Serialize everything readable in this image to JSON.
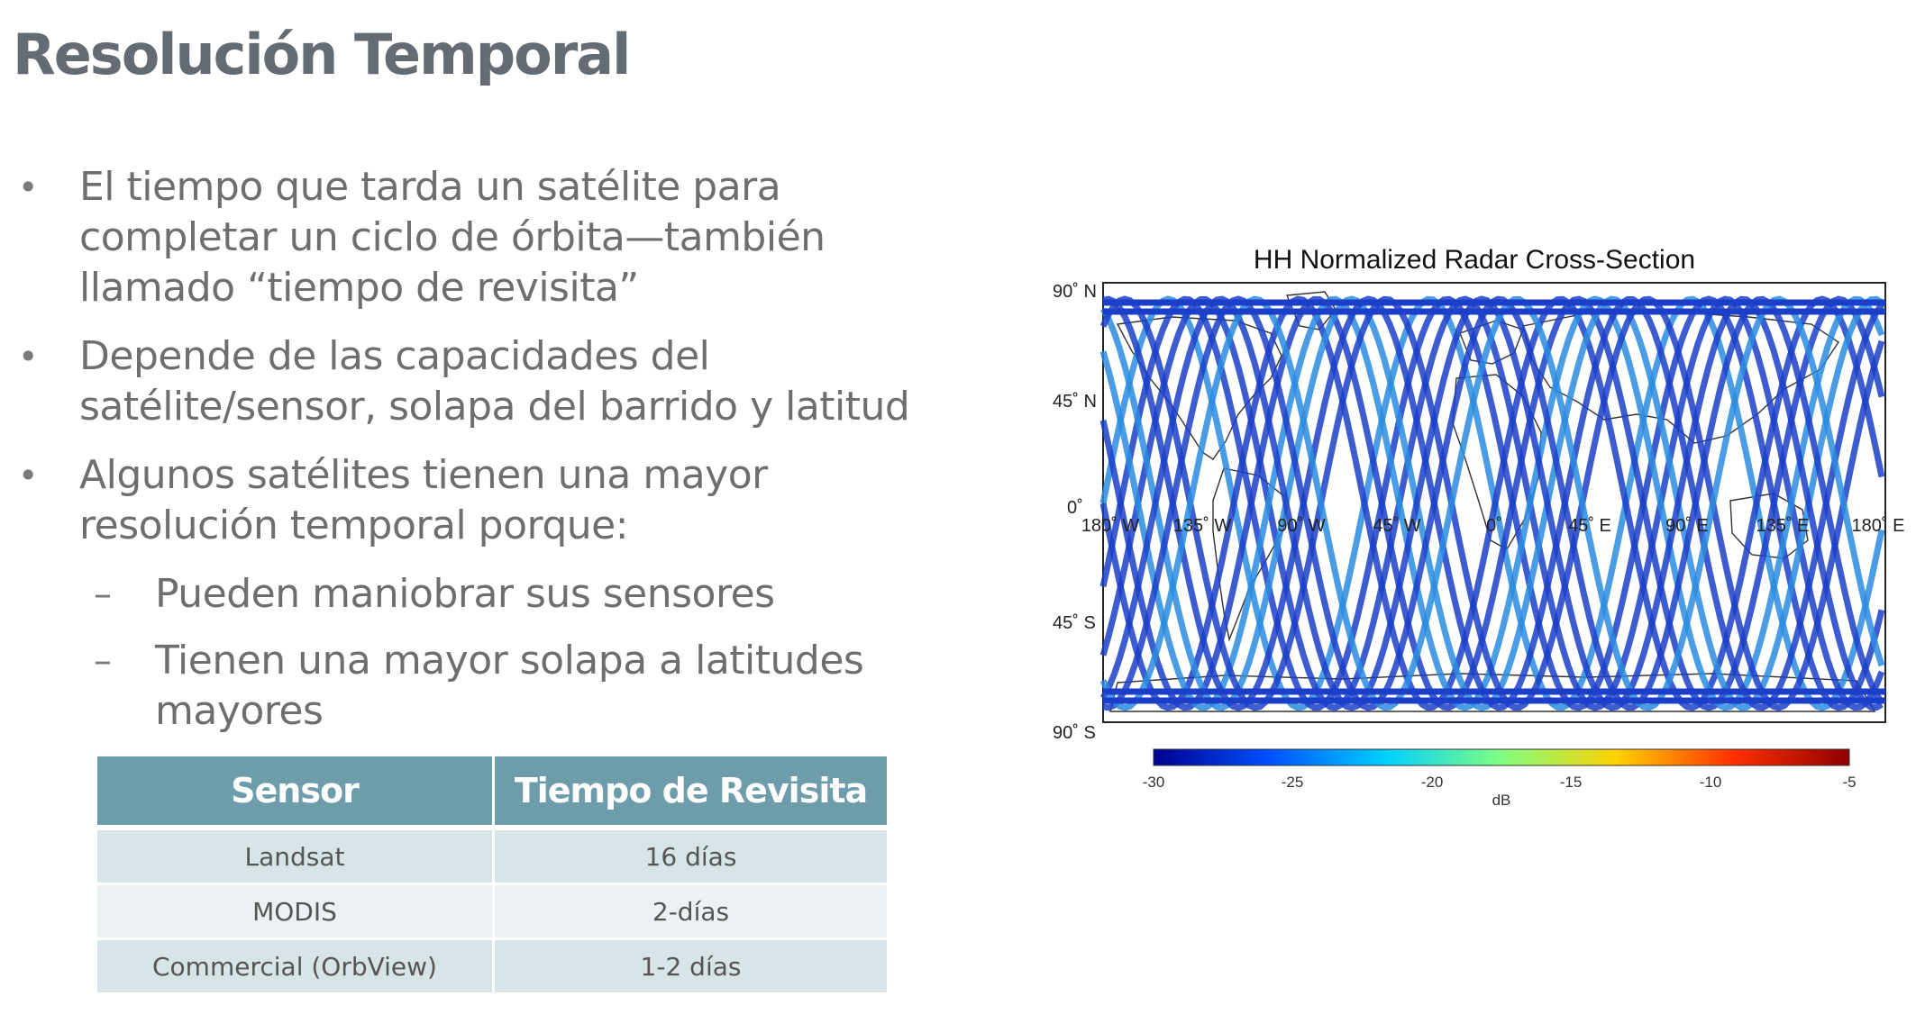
{
  "title": "Resolución Temporal",
  "bullets": [
    {
      "level": 1,
      "marker": "•",
      "text": "El tiempo que tarda un satélite para completar un ciclo de órbita—también llamado “tiempo de revisita”"
    },
    {
      "level": 1,
      "marker": "•",
      "text": "Depende de las capacidades del satélite/sensor, solapa del barrido y latitud"
    },
    {
      "level": 1,
      "marker": "•",
      "text": "Algunos satélites tienen una mayor resolución temporal porque:"
    },
    {
      "level": 2,
      "marker": "–",
      "text": "Pueden maniobrar sus sensores"
    },
    {
      "level": 2,
      "marker": "–",
      "text": "Tienen una mayor solapa a latitudes mayores"
    }
  ],
  "table": {
    "headers": [
      "Sensor",
      "Tiempo de Revisita"
    ],
    "rows": [
      [
        "Landsat",
        "16 días"
      ],
      [
        "MODIS",
        "2-días"
      ],
      [
        "Commercial (OrbView)",
        "1-2 días"
      ]
    ]
  },
  "figure": {
    "title": "HH Normalized Radar Cross-Section",
    "lat_labels": [
      "90˚ N",
      "45˚ N",
      "0˚",
      "45˚ S",
      "90˚ S"
    ],
    "lon_labels": [
      "180˚ W",
      "135˚ W",
      "90˚ W",
      "45˚ W",
      "0˚",
      "45˚ E",
      "90˚ E",
      "135˚ E",
      "180˚ E"
    ],
    "colorbar": {
      "ticks": [
        "-30",
        "-25",
        "-20",
        "-15",
        "-10",
        "-5"
      ],
      "unit": "dB",
      "colors": [
        "#00008f",
        "#0050ff",
        "#00d0ff",
        "#80ff80",
        "#ffd000",
        "#ff3000",
        "#8f0000"
      ]
    },
    "track_colors": {
      "primary": "#1b3fc8",
      "secondary": "#2a8ce0",
      "highlight": "#e8e84a"
    }
  }
}
